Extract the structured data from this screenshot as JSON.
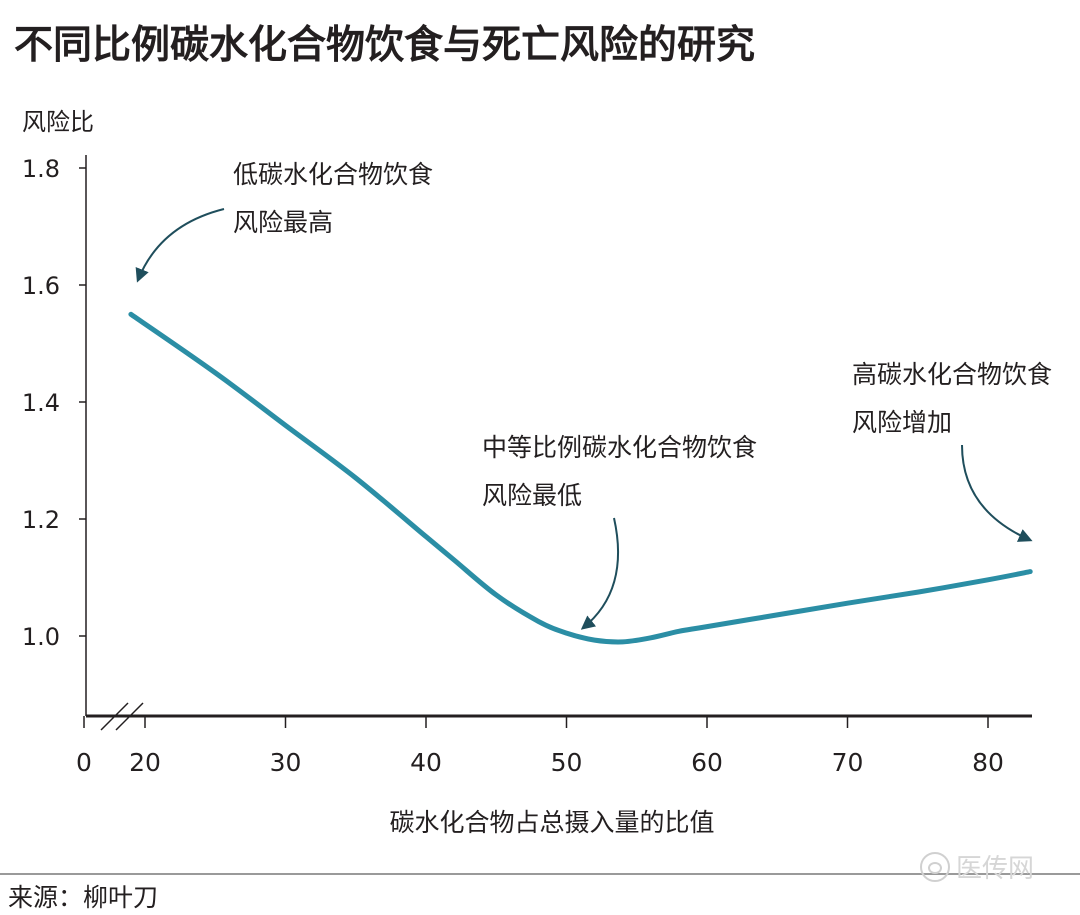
{
  "chart_data": {
    "type": "line",
    "title": "不同比例碳水化合物饮食与死亡风险的研究",
    "ylabel": "风险比",
    "xlabel": "碳水化合物占总摄入量的比值",
    "x_ticks": [
      "0",
      "20",
      "30",
      "40",
      "50",
      "60",
      "70",
      "80"
    ],
    "y_ticks": [
      "1.0",
      "1.2",
      "1.4",
      "1.6",
      "1.8"
    ],
    "xlim": [
      17,
      84
    ],
    "ylim": [
      0.85,
      1.8
    ],
    "axis_break": true,
    "grid": false,
    "series": [
      {
        "color": "#2b8ea5",
        "x": [
          19,
          25,
          30,
          35,
          40,
          42,
          45,
          48,
          50,
          52,
          54,
          56,
          58,
          60,
          65,
          70,
          75,
          80,
          83
        ],
        "y": [
          1.55,
          1.45,
          1.36,
          1.27,
          1.17,
          1.13,
          1.07,
          1.025,
          1.005,
          0.993,
          0.99,
          0.997,
          1.008,
          1.016,
          1.036,
          1.056,
          1.075,
          1.096,
          1.11
        ]
      }
    ],
    "annotations": [
      {
        "lines": [
          "低碳水化合物饮食",
          "风险最高"
        ]
      },
      {
        "lines": [
          "中等比例碳水化合物饮食",
          "风险最低"
        ]
      },
      {
        "lines": [
          "高碳水化合物饮食",
          "风险增加"
        ]
      }
    ]
  },
  "source": "来源：柳叶刀",
  "watermark": "医传网",
  "colors": {
    "line": "#2b8ea5",
    "arrow": "#1f4e5c",
    "axis": "#231f20"
  }
}
